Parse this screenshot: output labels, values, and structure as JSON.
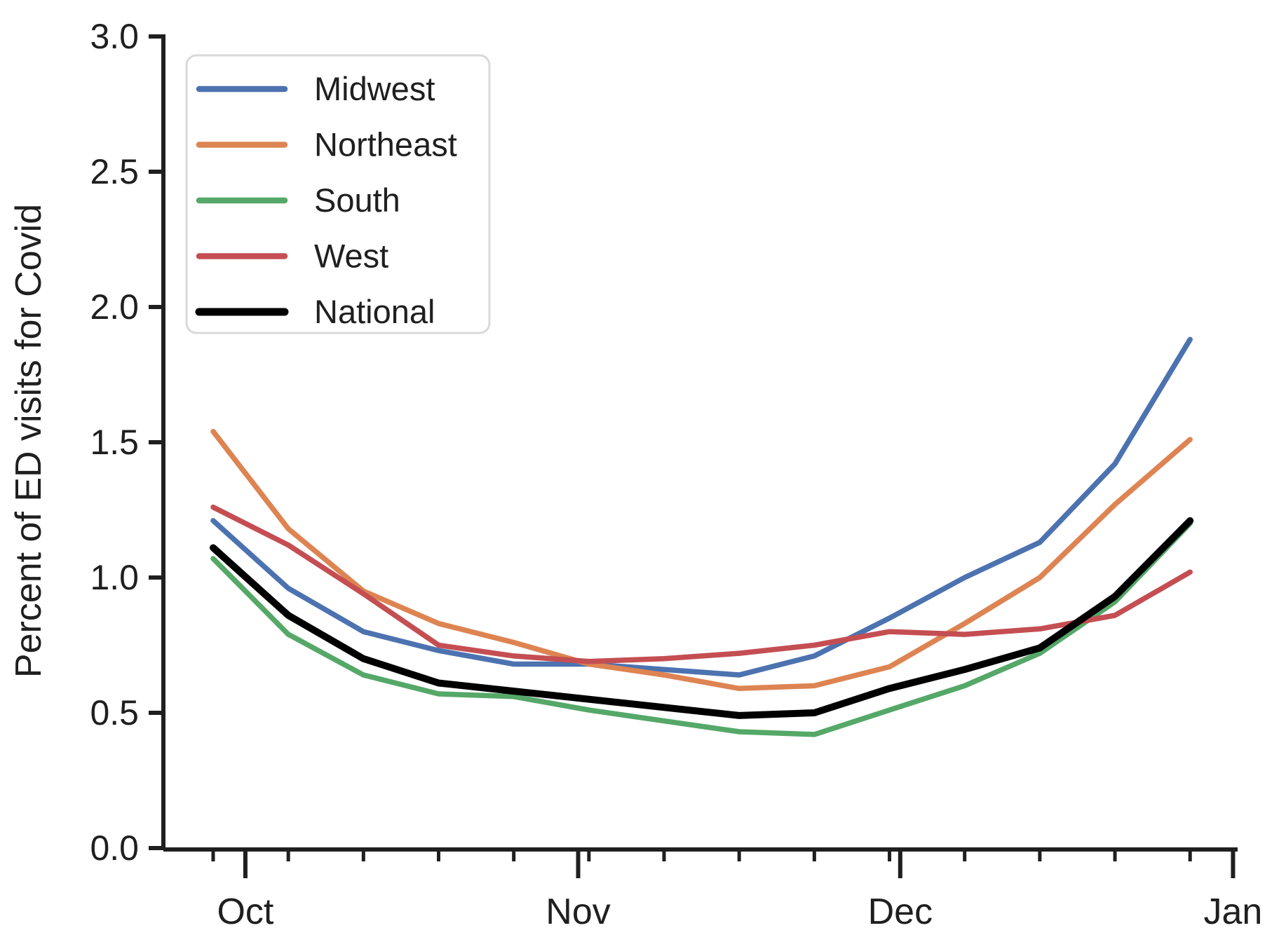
{
  "figure": {
    "background": "#ffffff",
    "text_color": "#1f1f1f"
  },
  "chart_data": {
    "type": "line",
    "title": "",
    "xlabel": "",
    "ylabel": "Percent of ED visits for Covid",
    "grid": "off",
    "legend_position": "upper-left",
    "ylim": [
      0.0,
      3.0
    ],
    "yticks": [
      {
        "value": 0.0,
        "label": "0.0"
      },
      {
        "value": 0.5,
        "label": "0.5"
      },
      {
        "value": 1.0,
        "label": "1.0"
      },
      {
        "value": 1.5,
        "label": "1.5"
      },
      {
        "value": 2.0,
        "label": "2.0"
      },
      {
        "value": 2.5,
        "label": "2.5"
      },
      {
        "value": 3.0,
        "label": "3.0"
      }
    ],
    "x_month_ticks": [
      {
        "label": "Oct",
        "day": 3
      },
      {
        "label": "Nov",
        "day": 34
      },
      {
        "label": "Dec",
        "day": 64
      },
      {
        "label": "Jan",
        "day": 95
      }
    ],
    "minor_tick_days": [
      0,
      7,
      14,
      21,
      28,
      35,
      42,
      49,
      56,
      63,
      70,
      77,
      84,
      91
    ],
    "x_weekly_dates": [
      "Sep 28",
      "Oct 5",
      "Oct 12",
      "Oct 19",
      "Oct 26",
      "Nov 2",
      "Nov 9",
      "Nov 16",
      "Nov 23",
      "Nov 30",
      "Dec 7",
      "Dec 14",
      "Dec 21",
      "Dec 28"
    ],
    "series": [
      {
        "name": "Midwest",
        "color": "#4C72B0",
        "emphasis": false,
        "values": [
          1.21,
          0.96,
          0.8,
          0.73,
          0.68,
          0.68,
          0.66,
          0.64,
          0.71,
          0.85,
          1.0,
          1.13,
          1.42,
          1.88
        ]
      },
      {
        "name": "Northeast",
        "color": "#DD8452",
        "emphasis": false,
        "values": [
          1.54,
          1.18,
          0.95,
          0.83,
          0.76,
          0.68,
          0.64,
          0.59,
          0.6,
          0.67,
          0.83,
          1.0,
          1.27,
          1.51
        ]
      },
      {
        "name": "South",
        "color": "#55A868",
        "emphasis": false,
        "values": [
          1.07,
          0.79,
          0.64,
          0.57,
          0.56,
          0.51,
          0.47,
          0.43,
          0.42,
          0.51,
          0.6,
          0.72,
          0.91,
          1.2
        ]
      },
      {
        "name": "West",
        "color": "#C44E52",
        "emphasis": false,
        "values": [
          1.26,
          1.12,
          0.94,
          0.75,
          0.71,
          0.69,
          0.7,
          0.72,
          0.75,
          0.8,
          0.79,
          0.81,
          0.86,
          1.02
        ]
      },
      {
        "name": "National",
        "color": "#000000",
        "emphasis": true,
        "values": [
          1.11,
          0.86,
          0.7,
          0.61,
          0.58,
          0.55,
          0.52,
          0.49,
          0.5,
          0.59,
          0.66,
          0.74,
          0.93,
          1.21
        ]
      }
    ]
  }
}
